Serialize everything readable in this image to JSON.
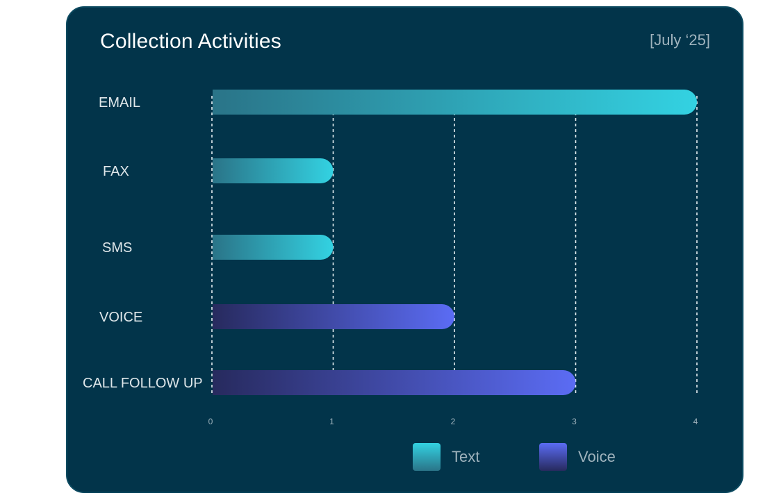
{
  "card": {
    "title": "Collection Activities",
    "date": "[July ‘25]"
  },
  "colors": {
    "background": "#02344a",
    "text_start": "#2a7488",
    "text_end": "#33d2e2",
    "voice_start": "#272a5e",
    "voice_end": "#5b6cf4"
  },
  "chart_data": {
    "type": "bar",
    "orientation": "horizontal",
    "title": "Collection Activities",
    "subtitle": "[July ‘25]",
    "categories": [
      "EMAIL",
      "FAX",
      "SMS",
      "VOICE",
      "CALL FOLLOW UP"
    ],
    "values": [
      4,
      1,
      1,
      2,
      3
    ],
    "groups": [
      "Text",
      "Text",
      "Text",
      "Voice",
      "Voice"
    ],
    "xticks": [
      "0",
      "1",
      "2",
      "3",
      "4"
    ],
    "xlim": [
      0,
      4
    ],
    "grid": "vertical dashed",
    "legend": {
      "position": "bottom-center",
      "items": [
        {
          "name": "Text",
          "color": "#33d2e2"
        },
        {
          "name": "Voice",
          "color": "#5b6cf4"
        }
      ]
    }
  }
}
